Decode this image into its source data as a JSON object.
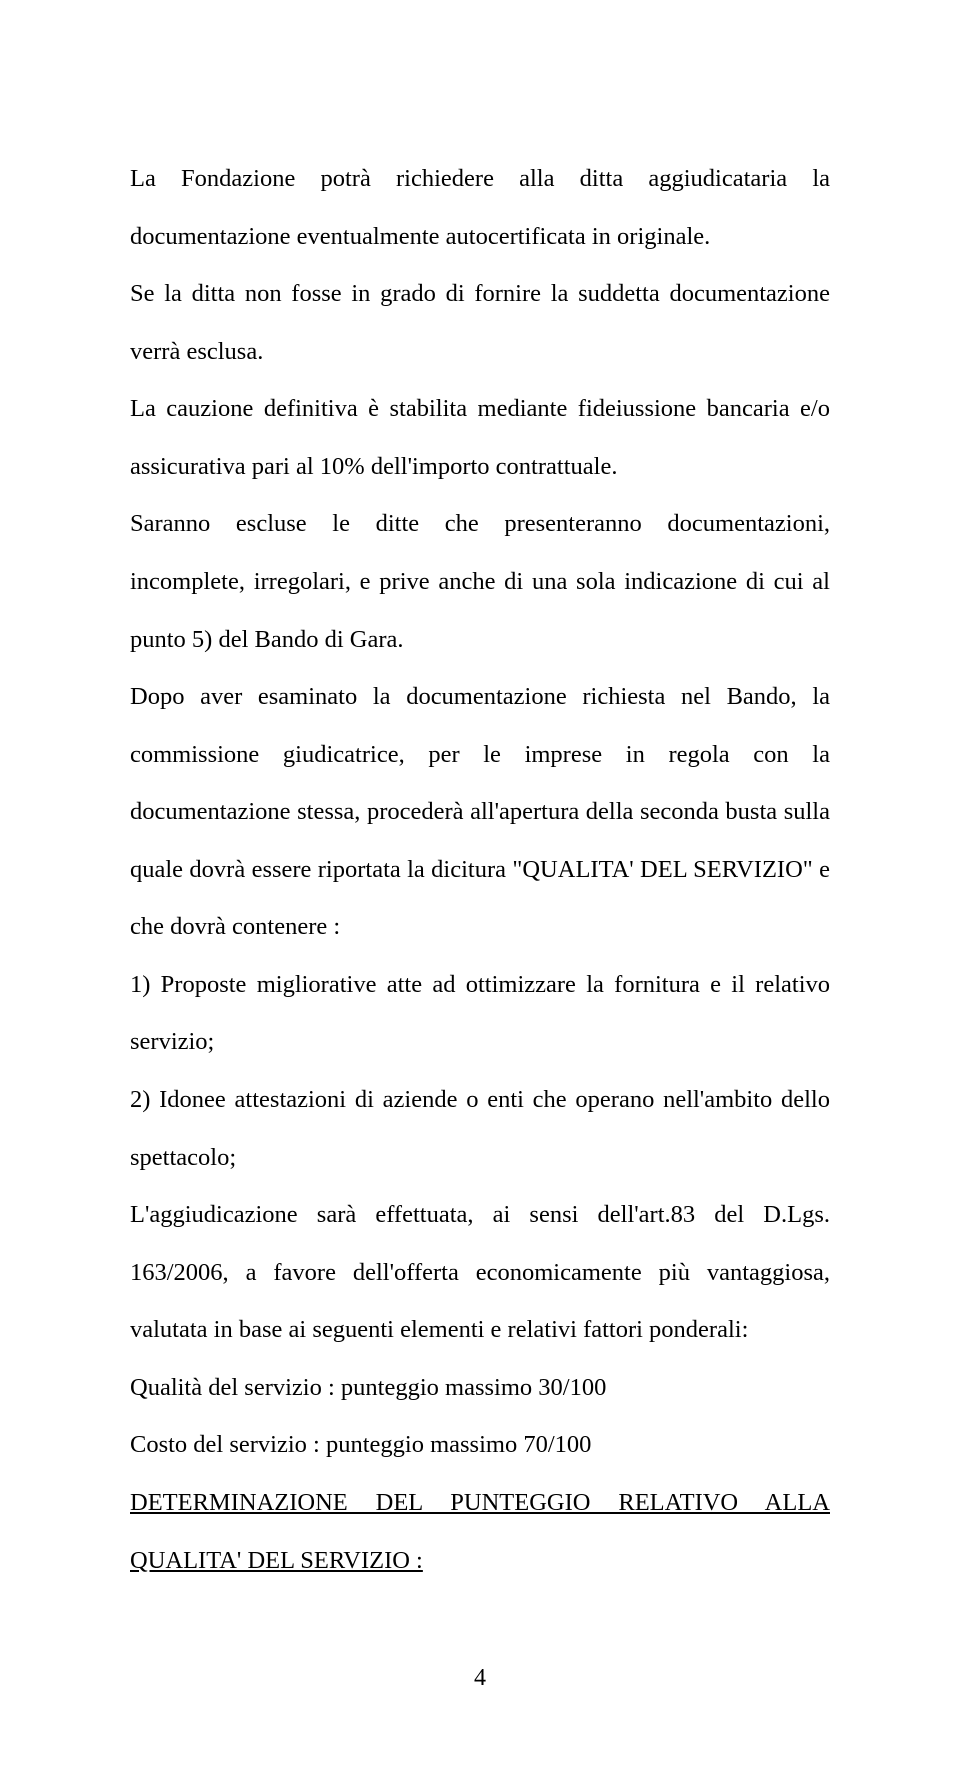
{
  "text": {
    "p1": "La Fondazione potrà richiedere alla ditta aggiudicataria la documentazione eventualmente autocertificata in originale.",
    "p2": "Se la ditta non fosse in grado di fornire la suddetta documentazione verrà esclusa.",
    "p3": "La cauzione definitiva è stabilita mediante fideiussione bancaria e/o assicurativa pari al 10% dell'importo contrattuale.",
    "p4": "Saranno escluse le ditte che presenteranno documentazioni, incomplete, irregolari, e prive anche di una sola indicazione di cui al punto 5) del Bando di Gara.",
    "p5": "Dopo aver esaminato la documentazione richiesta nel Bando, la commissione giudicatrice, per le imprese in regola con la documentazione stessa, procederà all'apertura della seconda busta sulla quale dovrà essere riportata la dicitura \"QUALITA' DEL SERVIZIO\" e che dovrà contenere :",
    "li1": "1) Proposte migliorative atte ad ottimizzare la fornitura e il relativo servizio;",
    "li2": "2) Idonee attestazioni di aziende o enti che operano nell'ambito dello spettacolo;",
    "p6": "L'aggiudicazione sarà effettuata, ai sensi dell'art.83 del D.Lgs. 163/2006, a favore dell'offerta economicamente più vantaggiosa, valutata in base ai seguenti elementi e relativi fattori ponderali:",
    "q1": "Qualità del servizio : punteggio massimo 30/100",
    "q2": "Costo del servizio : punteggio massimo 70/100",
    "h1": "DETERMINAZIONE DEL PUNTEGGIO RELATIVO ALLA QUALITA' DEL SERVIZIO :"
  },
  "page_number": "4",
  "style": {
    "font_family": "Times New Roman",
    "font_size_pt": 12,
    "text_color": "#000000",
    "background_color": "#ffffff",
    "line_height": 2.35,
    "text_align": "justify"
  }
}
